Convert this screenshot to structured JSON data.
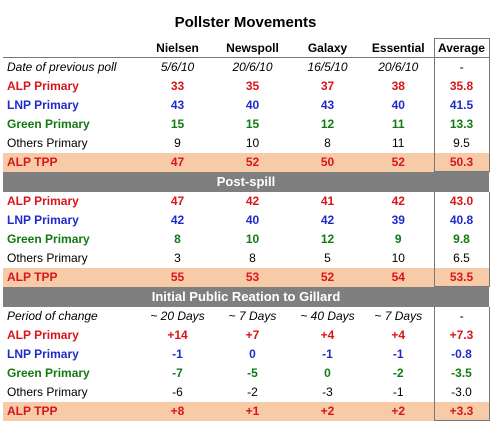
{
  "title": "Pollster Movements",
  "columns": [
    "Nielsen",
    "Newspoll",
    "Galaxy",
    "Essential",
    "Average"
  ],
  "sections": [
    {
      "heading": "",
      "meta": {
        "label": "Date of previous poll",
        "values": [
          "5/6/10",
          "20/6/10",
          "16/5/10",
          "20/6/10",
          "-"
        ]
      },
      "rows": [
        {
          "type": "alp",
          "label": "ALP Primary",
          "values": [
            "33",
            "35",
            "37",
            "38",
            "35.8"
          ]
        },
        {
          "type": "lnp",
          "label": "LNP Primary",
          "values": [
            "43",
            "40",
            "43",
            "40",
            "41.5"
          ]
        },
        {
          "type": "grn",
          "label": "Green Primary",
          "values": [
            "15",
            "15",
            "12",
            "11",
            "13.3"
          ]
        },
        {
          "type": "oth",
          "label": "Others Primary",
          "values": [
            "9",
            "10",
            "8",
            "11",
            "9.5"
          ]
        },
        {
          "type": "tpp",
          "label": "ALP TPP",
          "values": [
            "47",
            "52",
            "50",
            "52",
            "50.3"
          ]
        }
      ]
    },
    {
      "heading": "Post-spill",
      "rows": [
        {
          "type": "alp",
          "label": "ALP Primary",
          "values": [
            "47",
            "42",
            "41",
            "42",
            "43.0"
          ]
        },
        {
          "type": "lnp",
          "label": "LNP Primary",
          "values": [
            "42",
            "40",
            "42",
            "39",
            "40.8"
          ]
        },
        {
          "type": "grn",
          "label": "Green Primary",
          "values": [
            "8",
            "10",
            "12",
            "9",
            "9.8"
          ]
        },
        {
          "type": "oth",
          "label": "Others Primary",
          "values": [
            "3",
            "8",
            "5",
            "10",
            "6.5"
          ]
        },
        {
          "type": "tpp",
          "label": "ALP TPP",
          "values": [
            "55",
            "53",
            "52",
            "54",
            "53.5"
          ]
        }
      ]
    },
    {
      "heading": "Initial Public Reation to Gillard",
      "meta": {
        "label": "Period of change",
        "values": [
          "~ 20 Days",
          "~ 7 Days",
          "~ 40 Days",
          "~ 7 Days",
          "-"
        ]
      },
      "rows": [
        {
          "type": "alp",
          "label": "ALP Primary",
          "values": [
            "+14",
            "+7",
            "+4",
            "+4",
            "+7.3"
          ]
        },
        {
          "type": "lnp",
          "label": "LNP Primary",
          "values": [
            "-1",
            "0",
            "-1",
            "-1",
            "-0.8"
          ]
        },
        {
          "type": "grn",
          "label": "Green Primary",
          "values": [
            "-7",
            "-5",
            "0",
            "-2",
            "-3.5"
          ]
        },
        {
          "type": "oth",
          "label": "Others Primary",
          "values": [
            "-6",
            "-2",
            "-3",
            "-1",
            "-3.0"
          ]
        },
        {
          "type": "tpp",
          "label": "ALP TPP",
          "values": [
            "+8",
            "+1",
            "+2",
            "+2",
            "+3.3"
          ]
        }
      ]
    }
  ]
}
